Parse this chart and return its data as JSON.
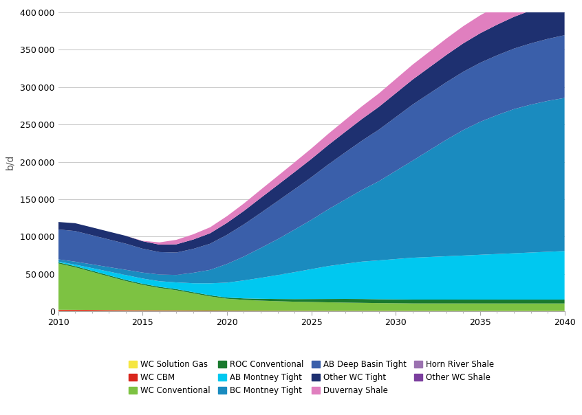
{
  "years": [
    2010,
    2011,
    2012,
    2013,
    2014,
    2015,
    2016,
    2017,
    2018,
    2019,
    2020,
    2021,
    2022,
    2023,
    2024,
    2025,
    2026,
    2027,
    2028,
    2029,
    2030,
    2031,
    2032,
    2033,
    2034,
    2035,
    2036,
    2037,
    2038,
    2039,
    2040
  ],
  "series": {
    "WC Solution Gas": [
      500,
      500,
      500,
      400,
      400,
      300,
      300,
      300,
      300,
      300,
      300,
      300,
      300,
      300,
      300,
      300,
      300,
      300,
      300,
      300,
      300,
      300,
      300,
      300,
      300,
      300,
      300,
      300,
      300,
      300,
      300
    ],
    "WC CBM": [
      1500,
      1400,
      1300,
      1200,
      1100,
      1000,
      900,
      800,
      700,
      600,
      500,
      450,
      400,
      350,
      300,
      280,
      260,
      240,
      220,
      200,
      180,
      160,
      140,
      130,
      120,
      110,
      100,
      100,
      100,
      100,
      100
    ],
    "WC Conventional": [
      62000,
      57000,
      51000,
      45000,
      39000,
      34000,
      30000,
      27000,
      23000,
      19000,
      16000,
      14500,
      13500,
      12800,
      12200,
      11800,
      11400,
      11000,
      10700,
      10400,
      10200,
      10000,
      10000,
      10000,
      10000,
      10000,
      10000,
      10000,
      10000,
      10000,
      10000
    ],
    "ROC Conventional": [
      1500,
      1500,
      1500,
      1500,
      1500,
      1500,
      1500,
      1500,
      1500,
      1500,
      1500,
      2000,
      2500,
      3000,
      3500,
      4000,
      4500,
      5000,
      5200,
      5200,
      5200,
      5200,
      5200,
      5200,
      5200,
      5200,
      5200,
      5200,
      5200,
      5200,
      5200
    ],
    "AB Montney Tight": [
      1000,
      2000,
      3500,
      5000,
      6500,
      7000,
      7500,
      9000,
      12000,
      16000,
      20000,
      24000,
      28000,
      32000,
      36000,
      40000,
      44000,
      47000,
      50000,
      52000,
      54000,
      56000,
      57000,
      58000,
      59000,
      60000,
      61000,
      62000,
      63000,
      64000,
      65000
    ],
    "BC Montney Tight": [
      3000,
      4000,
      5000,
      6000,
      7000,
      8000,
      9000,
      10000,
      14000,
      18000,
      25000,
      32000,
      40000,
      48000,
      57000,
      66000,
      76000,
      86000,
      96000,
      106000,
      118000,
      130000,
      143000,
      156000,
      168000,
      178000,
      186000,
      193000,
      198000,
      202000,
      205000
    ],
    "AB Deep Basin Tight": [
      40000,
      41000,
      39000,
      37000,
      35000,
      32000,
      30000,
      30000,
      32000,
      35000,
      39000,
      43000,
      47000,
      51000,
      54000,
      57000,
      60000,
      63000,
      66000,
      69000,
      72000,
      75000,
      76000,
      77000,
      78000,
      79000,
      80000,
      81000,
      82000,
      83000,
      84000
    ],
    "Other WC Tight": [
      10000,
      10500,
      10500,
      10500,
      10500,
      10000,
      10000,
      11000,
      12500,
      14000,
      16000,
      18000,
      20000,
      21500,
      23000,
      24500,
      26000,
      27500,
      29000,
      30500,
      32000,
      33500,
      35000,
      36500,
      38000,
      39500,
      41000,
      42500,
      44000,
      45500,
      47000
    ],
    "Duvernay Shale": [
      0,
      0,
      0,
      0,
      0,
      500,
      3000,
      6000,
      7000,
      8000,
      9000,
      10000,
      11000,
      12000,
      13000,
      14000,
      15000,
      16000,
      17000,
      18000,
      19000,
      20000,
      21000,
      22000,
      23000,
      24000,
      25000,
      26000,
      27000,
      28000,
      29000
    ],
    "Horn River Shale": [
      0,
      0,
      0,
      0,
      0,
      0,
      0,
      0,
      0,
      0,
      0,
      0,
      0,
      0,
      0,
      0,
      0,
      0,
      0,
      0,
      0,
      0,
      0,
      0,
      0,
      0,
      0,
      0,
      0,
      0,
      0
    ],
    "Other WC Shale": [
      0,
      0,
      0,
      0,
      0,
      0,
      0,
      0,
      0,
      0,
      0,
      0,
      0,
      0,
      0,
      0,
      0,
      0,
      0,
      0,
      0,
      0,
      0,
      0,
      0,
      0,
      0,
      0,
      0,
      0,
      0
    ]
  },
  "colors": {
    "WC Solution Gas": "#f5e642",
    "WC CBM": "#d9261c",
    "WC Conventional": "#7dc242",
    "ROC Conventional": "#1a7a2e",
    "AB Montney Tight": "#00c8f0",
    "BC Montney Tight": "#1a8bbf",
    "AB Deep Basin Tight": "#3a5faa",
    "Other WC Tight": "#1e3070",
    "Duvernay Shale": "#e07fbf",
    "Horn River Shale": "#9b72b0",
    "Other WC Shale": "#7b3f9e"
  },
  "ylabel": "b/d",
  "ylim": [
    0,
    400000
  ],
  "yticks": [
    0,
    50000,
    100000,
    150000,
    200000,
    250000,
    300000,
    350000,
    400000
  ],
  "xlim": [
    2010,
    2040
  ],
  "xticks": [
    2010,
    2015,
    2020,
    2025,
    2030,
    2035,
    2040
  ],
  "background_color": "#ffffff",
  "grid_color": "#cccccc",
  "legend_order": [
    "WC Solution Gas",
    "WC CBM",
    "WC Conventional",
    "ROC Conventional",
    "AB Montney Tight",
    "BC Montney Tight",
    "AB Deep Basin Tight",
    "Other WC Tight",
    "Duvernay Shale",
    "Horn River Shale",
    "Other WC Shale"
  ]
}
